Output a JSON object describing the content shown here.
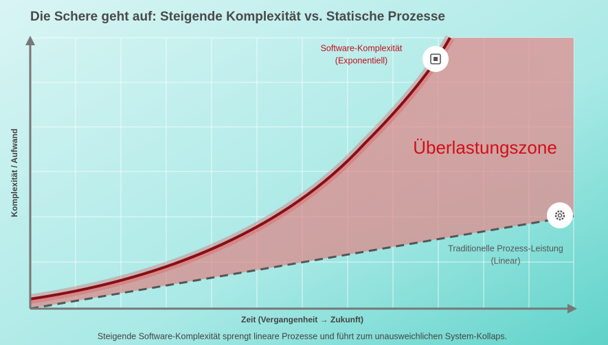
{
  "title": "Die Schere geht auf: Steigende Komplexität vs. Statische Prozesse",
  "y_axis_label": "Komplexität / Aufwand",
  "x_axis_label": "Zeit (Vergangenheit → Zukunft)",
  "caption": "Steigende Software-Komplexität sprengt lineare Prozesse und führt zum unausweichlichen System-Kollaps.",
  "annotations": {
    "exponential": [
      "Software-Komplexität",
      "(Exponentiell)"
    ],
    "zone": "Überlastungszone",
    "linear": [
      "Traditionelle Prozess-Leistung",
      "(Linear)"
    ]
  }
}
